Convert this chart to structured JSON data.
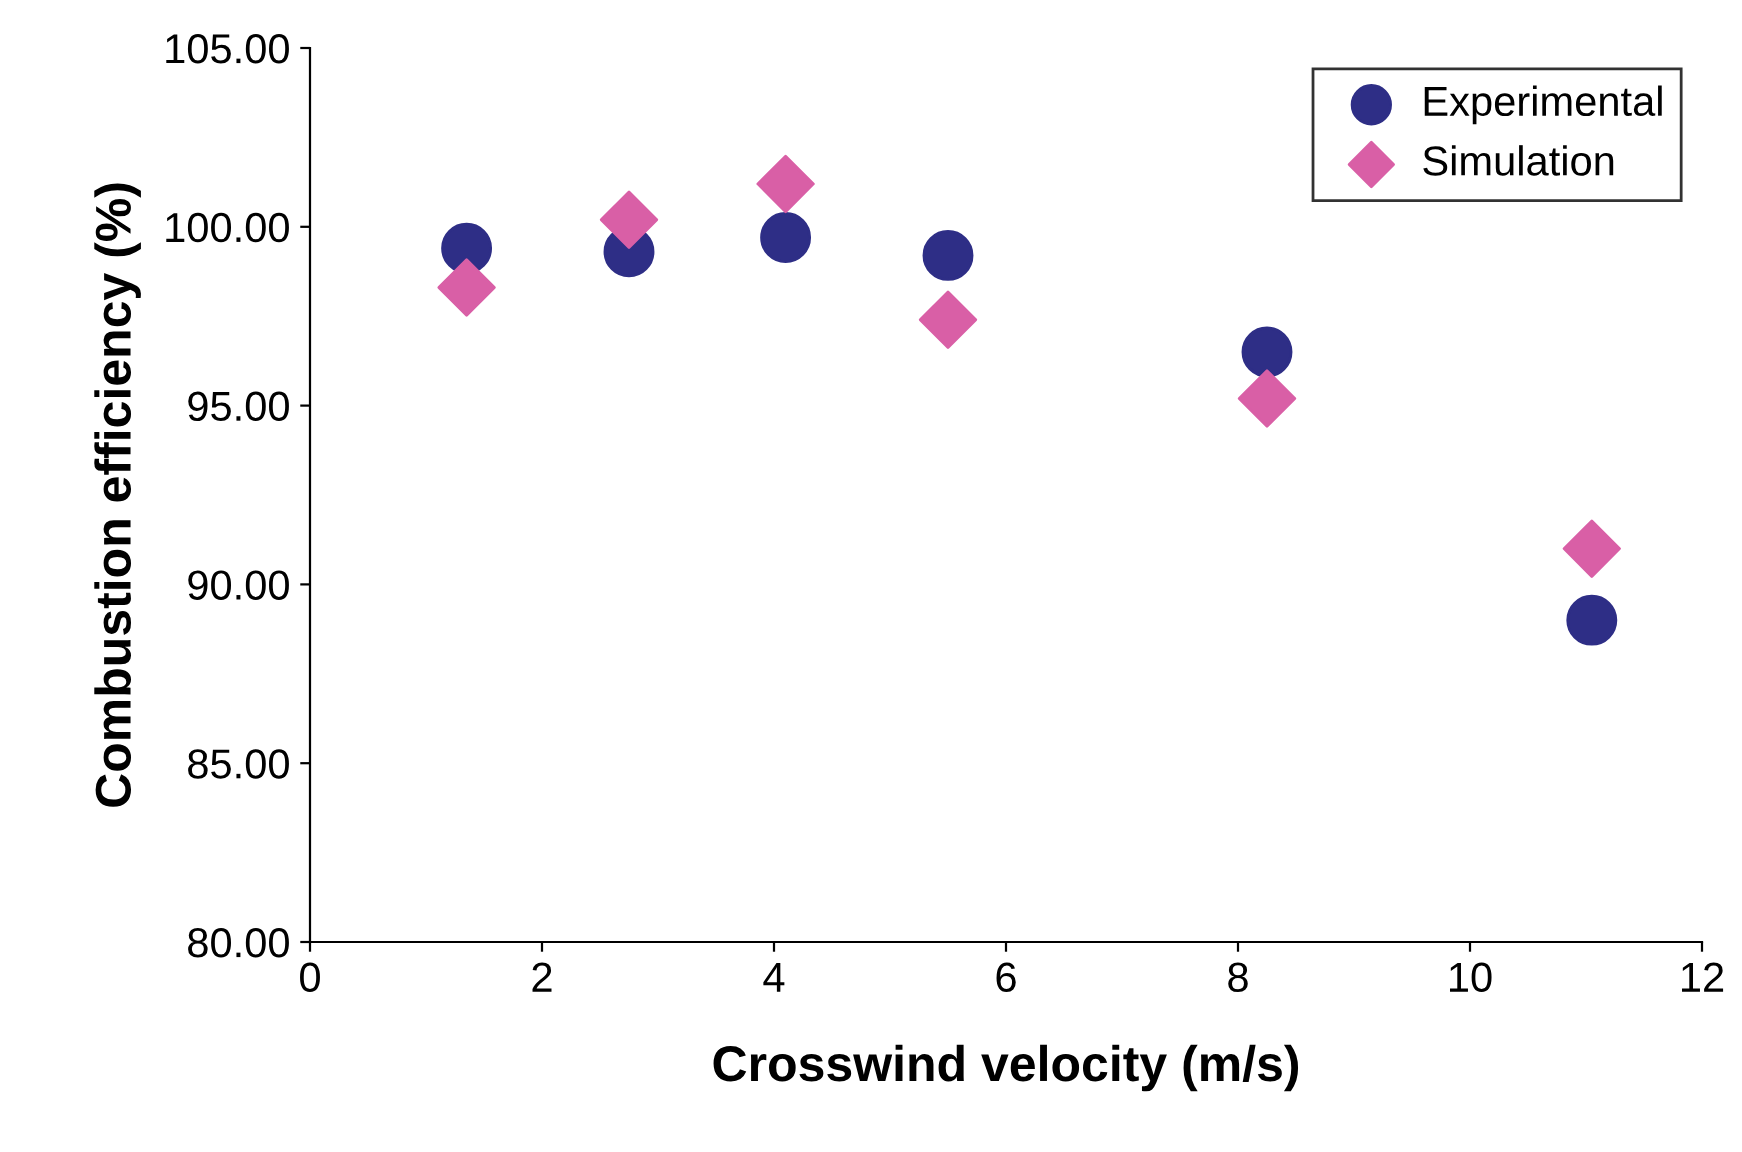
{
  "chart_data": {
    "type": "scatter",
    "xlabel": "Crosswind velocity (m/s)",
    "ylabel": "Combustion efficiency (%)",
    "x": [
      1.35,
      2.75,
      4.1,
      5.5,
      8.25,
      11.05
    ],
    "series": [
      {
        "name": "Experimental",
        "color": "#2e2e86",
        "marker": "circle",
        "values": [
          99.4,
          99.3,
          99.7,
          99.2,
          96.5,
          89.0
        ]
      },
      {
        "name": "Simulation",
        "color": "#d95fa6",
        "marker": "diamond",
        "values": [
          98.3,
          100.2,
          101.2,
          97.4,
          95.2,
          91.0
        ]
      }
    ],
    "xlim": [
      0,
      12
    ],
    "xticks": [
      0,
      2,
      4,
      6,
      8,
      10,
      12
    ],
    "ylim": [
      80,
      105
    ],
    "yticks": [
      {
        "value": 80,
        "label": "80.00"
      },
      {
        "value": 85,
        "label": "85.00"
      },
      {
        "value": 90,
        "label": "90.00"
      },
      {
        "value": 95,
        "label": "95.00"
      },
      {
        "value": 100,
        "label": "100.00"
      },
      {
        "value": 105,
        "label": "105.00"
      }
    ],
    "grid": false,
    "legend": "top right"
  }
}
